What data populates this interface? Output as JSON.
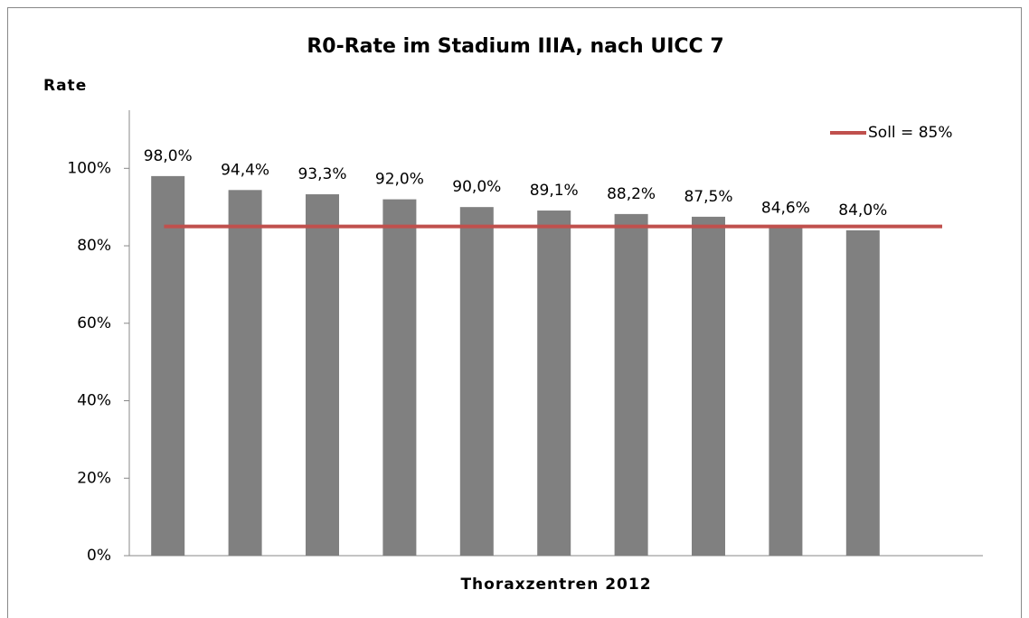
{
  "chart_data": {
    "type": "bar",
    "title": "R0-Rate im Stadium IIIA, nach UICC 7",
    "y_label": "Rate",
    "x_label": "Thoraxzentren 2012",
    "categories": [
      null,
      null,
      null,
      null,
      null,
      null,
      null,
      null,
      null,
      null
    ],
    "values": [
      98.0,
      94.4,
      93.3,
      92.0,
      90.0,
      89.1,
      88.2,
      87.5,
      84.6,
      84.0
    ],
    "value_labels": [
      "98,0%",
      "94,4%",
      "93,3%",
      "92,0%",
      "90,0%",
      "89,1%",
      "88,2%",
      "87,5%",
      "84,6%",
      "84,0%"
    ],
    "color": "#808080",
    "ylim": [
      0,
      115
    ],
    "yticks": [
      {
        "value": 0,
        "label": "0%"
      },
      {
        "value": 20,
        "label": "20%"
      },
      {
        "value": 40,
        "label": "40%"
      },
      {
        "value": 60,
        "label": "60%"
      },
      {
        "value": 80,
        "label": "80%"
      },
      {
        "value": 100,
        "label": "100%"
      }
    ],
    "reference_line": {
      "name": "Soll = 85%",
      "value": 85,
      "color": "#c0504d"
    },
    "legend": "top-right",
    "grid": false
  }
}
